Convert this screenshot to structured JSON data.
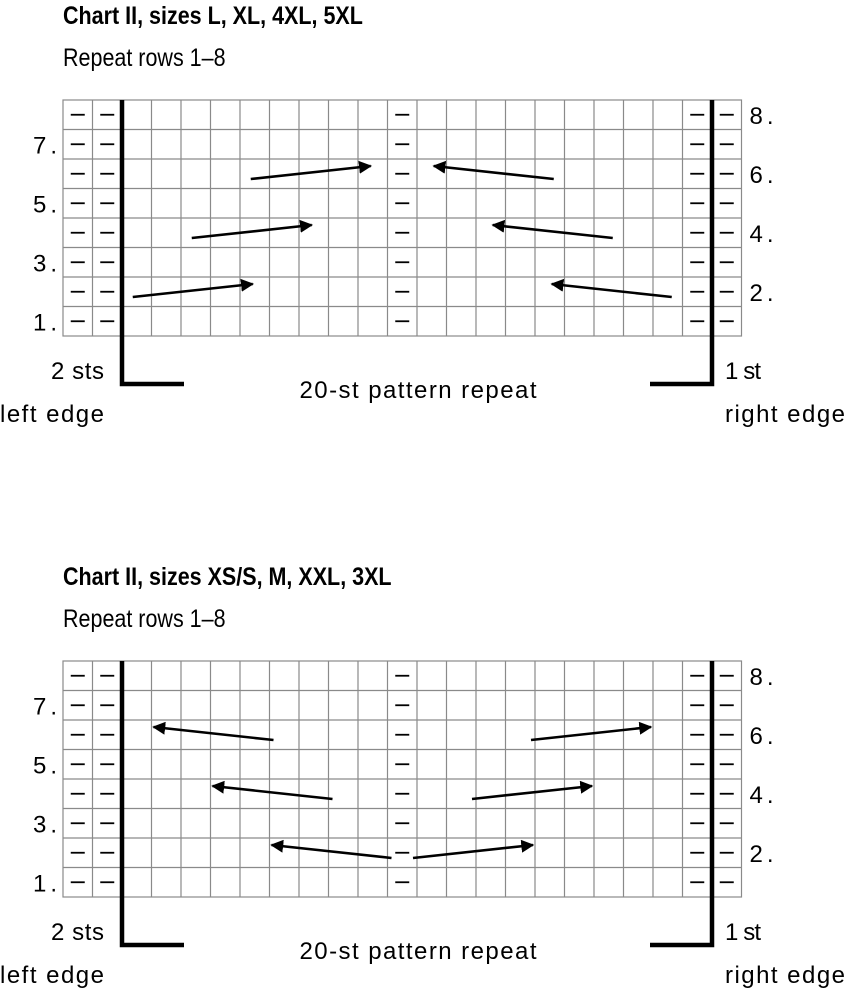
{
  "chart_data": [
    {
      "type": "table",
      "title": "Chart II, sizes L, XL, 4XL, 5XL",
      "subtitle": "Repeat rows 1–8",
      "columns": 23,
      "rows": 8,
      "purl_columns": [
        1,
        2,
        12,
        22,
        23
      ],
      "left_row_labels": [
        "7.",
        "5.",
        "3.",
        "1."
      ],
      "right_row_labels": [
        "8.",
        "6.",
        "4.",
        "2."
      ],
      "left_edge_label_1": "2 sts",
      "left_edge_label_2": "left edge",
      "repeat_label": "20-st pattern repeat",
      "right_edge_label_1": "1 st",
      "right_edge_label_2": "right edge",
      "arrows": [
        {
          "row": 2,
          "from_col": 3,
          "to_col": 7.5
        },
        {
          "row": 4,
          "from_col": 5,
          "to_col": 9.5
        },
        {
          "row": 6,
          "from_col": 7,
          "to_col": 11.5
        },
        {
          "row": 2,
          "from_col": 21,
          "to_col": 16.5
        },
        {
          "row": 4,
          "from_col": 19,
          "to_col": 14.5
        },
        {
          "row": 6,
          "from_col": 17,
          "to_col": 12.5
        }
      ]
    },
    {
      "type": "table",
      "title": "Chart II, sizes XS/S, M, XXL, 3XL",
      "subtitle": "Repeat rows 1–8",
      "columns": 23,
      "rows": 8,
      "purl_columns": [
        1,
        2,
        12,
        22,
        23
      ],
      "left_row_labels": [
        "7.",
        "5.",
        "3.",
        "1."
      ],
      "right_row_labels": [
        "8.",
        "6.",
        "4.",
        "2."
      ],
      "left_edge_label_1": "2 sts",
      "left_edge_label_2": "left edge",
      "repeat_label": "20-st pattern repeat",
      "right_edge_label_1": "1 st",
      "right_edge_label_2": "right edge",
      "arrows": [
        {
          "row": 2,
          "from_col": 11.5,
          "to_col": 7
        },
        {
          "row": 4,
          "from_col": 9.5,
          "to_col": 5
        },
        {
          "row": 6,
          "from_col": 7.5,
          "to_col": 3
        },
        {
          "row": 2,
          "from_col": 12.5,
          "to_col": 17
        },
        {
          "row": 4,
          "from_col": 14.5,
          "to_col": 19
        },
        {
          "row": 6,
          "from_col": 16.5,
          "to_col": 21
        }
      ]
    }
  ]
}
